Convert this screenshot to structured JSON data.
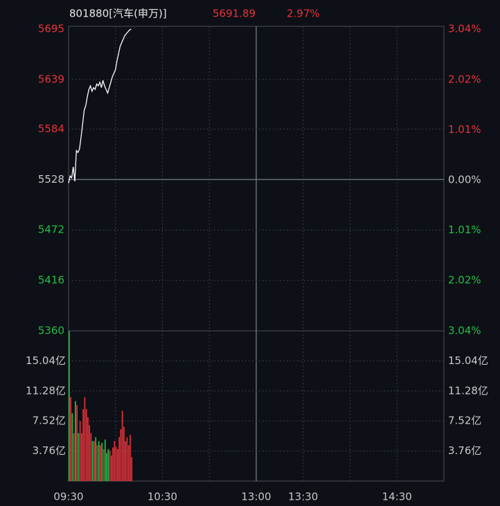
{
  "chart_data": [
    {
      "type": "line",
      "title": "801880[汽车(申万)]",
      "price": 5691.89,
      "change": {
        "value": 2.97,
        "label": "2.97%"
      },
      "x": [
        0,
        1,
        2,
        3,
        4,
        5,
        6,
        7,
        8,
        9,
        10,
        11,
        12,
        13,
        14,
        15,
        16,
        17,
        18,
        19,
        20,
        21,
        22,
        23,
        24,
        25,
        26,
        27,
        28,
        29,
        30,
        31,
        32,
        33,
        34,
        35,
        36,
        37,
        38,
        39,
        40
      ],
      "series": [
        {
          "name": "price",
          "color": "#ffffff",
          "values": [
            5524,
            5532,
            5530,
            5542,
            5526,
            5560,
            5558,
            5562,
            5575,
            5590,
            5605,
            5610,
            5620,
            5628,
            5632,
            5626,
            5630,
            5628,
            5634,
            5632,
            5636,
            5630,
            5638,
            5632,
            5628,
            5624,
            5630,
            5636,
            5642,
            5646,
            5650,
            5660,
            5668,
            5676,
            5680,
            5684,
            5688,
            5690,
            5692,
            5694,
            5695
          ]
        }
      ],
      "base": 5528,
      "xlim": [
        0,
        240
      ],
      "xticks": [
        {
          "value": 0,
          "label": "09:30"
        },
        {
          "value": 60,
          "label": "10:30"
        },
        {
          "value": 120,
          "label": "13:00"
        },
        {
          "value": 150,
          "label": "13:30"
        },
        {
          "value": 210,
          "label": "14:30"
        }
      ],
      "xgrid": [
        30,
        60,
        90,
        120,
        150,
        180,
        210
      ],
      "ylim": [
        5360,
        5695
      ],
      "yticks": [
        5695,
        5639,
        5584,
        5528,
        5472,
        5416,
        5360
      ],
      "y2lim": [
        -3.04,
        3.04
      ],
      "y2ticks": [
        {
          "value": 3.04,
          "label": "3.04%"
        },
        {
          "value": 2.02,
          "label": "2.02%"
        },
        {
          "value": 1.01,
          "label": "1.01%"
        },
        {
          "value": 0,
          "label": "0.00%"
        },
        {
          "value": -1.01,
          "label": "1.01%"
        },
        {
          "value": -2.02,
          "label": "2.02%"
        },
        {
          "value": -3.04,
          "label": "3.04%"
        }
      ],
      "up_color": "#e8323c",
      "down_color": "#22c046",
      "grid": true
    },
    {
      "type": "bar",
      "x": [
        0,
        1,
        2,
        3,
        4,
        5,
        6,
        7,
        8,
        9,
        10,
        11,
        12,
        13,
        14,
        15,
        16,
        17,
        18,
        19,
        20,
        21,
        22,
        23,
        24,
        25,
        26,
        27,
        28,
        29,
        30,
        31,
        32,
        33,
        34,
        35,
        36,
        37,
        38,
        39,
        40
      ],
      "values": [
        18.8,
        10.5,
        8.5,
        6,
        10,
        9.5,
        6,
        7.5,
        6,
        9,
        10.5,
        9,
        8,
        7,
        6,
        5,
        5,
        5.5,
        4.5,
        5,
        4.5,
        4.8,
        4,
        5.2,
        3.5,
        4,
        3.8,
        3.2,
        4.2,
        5,
        4.3,
        4,
        5.5,
        6.5,
        8.8,
        6.8,
        5,
        5.5,
        4.5,
        5.8,
        3
      ],
      "ylim": [
        0,
        18.8
      ],
      "yticks": [
        {
          "value": 15.04,
          "label": "15.04亿"
        },
        {
          "value": 11.28,
          "label": "11.28亿"
        },
        {
          "value": 7.52,
          "label": "7.52亿"
        },
        {
          "value": 3.76,
          "label": "3.76亿"
        }
      ],
      "grid": true
    }
  ]
}
